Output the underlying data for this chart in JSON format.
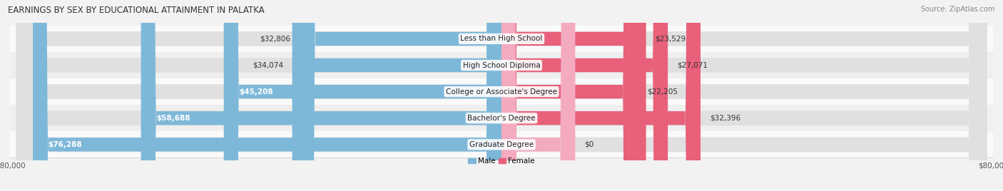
{
  "title": "EARNINGS BY SEX BY EDUCATIONAL ATTAINMENT IN PALATKA",
  "source": "Source: ZipAtlas.com",
  "categories": [
    "Less than High School",
    "High School Diploma",
    "College or Associate's Degree",
    "Bachelor's Degree",
    "Graduate Degree"
  ],
  "male_values": [
    32806,
    34074,
    45208,
    58688,
    76288
  ],
  "female_values": [
    23529,
    27071,
    22205,
    32396,
    0
  ],
  "graduate_female_bar": 12000,
  "male_color": "#7eb8d9",
  "female_color": "#e8607a",
  "female_color_grad": "#f4aabf",
  "x_max": 80000,
  "background_color": "#f2f2f2",
  "row_light": "#fafafa",
  "row_dark": "#efefef",
  "bar_track_color": "#e0e0e0",
  "title_fontsize": 8.5,
  "label_fontsize": 7.5,
  "value_fontsize": 7.5,
  "tick_fontsize": 7.5,
  "legend_fontsize": 7.5
}
